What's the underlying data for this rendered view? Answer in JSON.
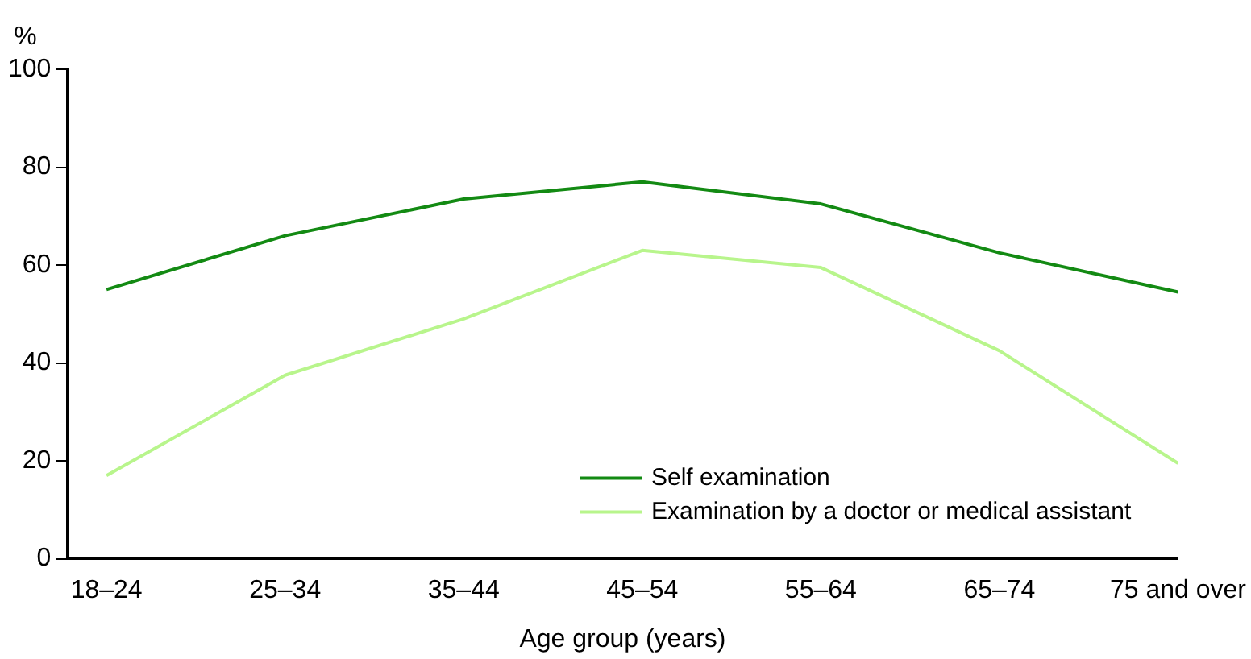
{
  "chart_data": {
    "type": "line",
    "ylabel": "%",
    "xlabel": "Age group (years)",
    "categories": [
      "18–24",
      "25–34",
      "35–44",
      "45–54",
      "55–64",
      "65–74",
      "75 and over"
    ],
    "series": [
      {
        "name": "Self examination",
        "color": "#138a13",
        "values": [
          55,
          66,
          73.5,
          77,
          72.5,
          62.5,
          54.5
        ]
      },
      {
        "name": "Examination by a doctor or medical assistant",
        "color": "#b8f58c",
        "values": [
          17,
          37.5,
          49,
          63,
          59.5,
          42.5,
          19.5
        ]
      }
    ],
    "ylim": [
      0,
      100
    ],
    "yticks": [
      0,
      20,
      40,
      60,
      80,
      100
    ],
    "grid": false,
    "legend": "bottom right",
    "marker": "none",
    "line_style": "solid"
  }
}
